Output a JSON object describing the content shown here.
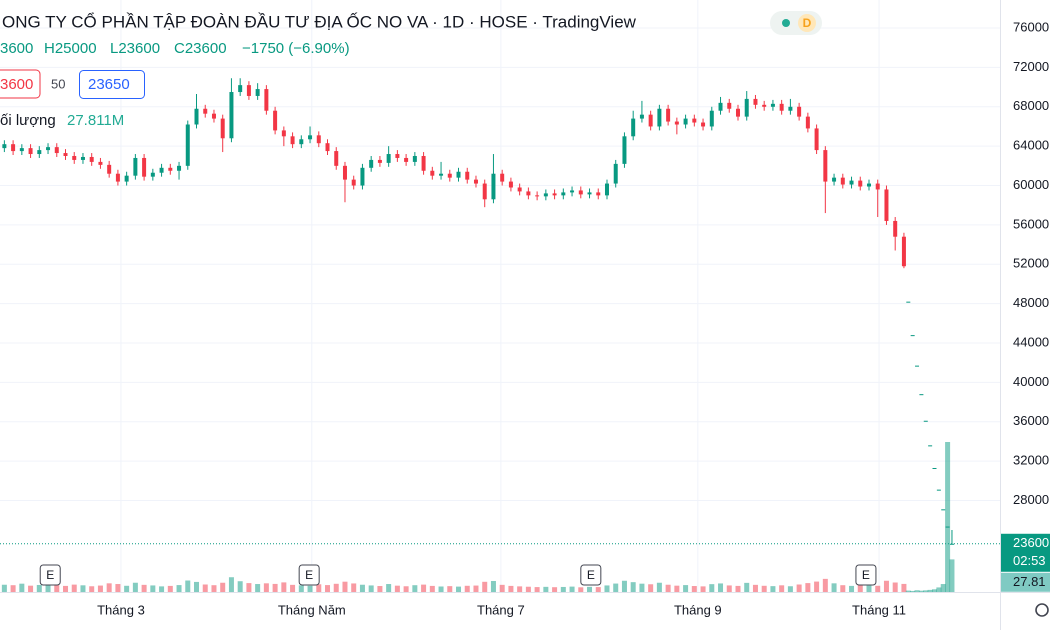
{
  "chart_data": {
    "type": "candlestick",
    "title": "ONG TY CỔ PHẦN TẬP ĐOÀN ĐẦU TƯ ĐỊA ỐC NO VA · 1D · HOSE · TradingView",
    "interval_badge": "D",
    "legend": {
      "open": "3600",
      "high": "H25000",
      "low": "L23600",
      "close": "C23600",
      "change": "−1750 (−6.90%)"
    },
    "indicator_row": {
      "left": "3600",
      "length": "50",
      "value": "23650"
    },
    "volume_legend": {
      "name": "ối lượng",
      "value": "27.811M"
    },
    "up_color": "#089981",
    "down_color": "#f23645",
    "grid": true,
    "x": [
      0,
      2,
      4,
      6,
      8,
      10,
      12,
      14,
      16,
      18,
      20,
      22,
      24,
      26,
      28,
      30,
      32,
      34,
      36,
      38,
      40,
      42,
      44,
      46,
      48,
      50,
      52,
      54,
      56,
      58,
      60,
      62,
      64,
      66,
      68,
      70,
      72,
      74,
      76,
      78,
      80,
      82,
      84,
      86,
      88,
      90,
      92,
      94,
      96,
      98,
      100,
      102,
      104,
      106,
      108,
      110,
      112,
      114,
      116,
      118,
      120,
      122,
      124,
      126,
      128,
      130,
      132,
      134,
      136,
      138,
      140,
      142,
      144,
      146,
      148,
      150,
      152,
      154,
      156,
      158,
      160,
      162,
      164,
      166,
      168,
      170,
      172,
      174,
      176,
      178,
      180,
      182,
      184,
      186,
      188,
      190,
      192,
      194,
      196,
      198,
      200,
      202,
      204,
      206,
      207,
      208,
      209,
      210,
      211,
      212,
      213,
      214,
      215,
      216,
      217
    ],
    "open": [
      63800,
      64200,
      63500,
      63800,
      63200,
      63600,
      63900,
      63300,
      63000,
      62600,
      62900,
      62400,
      62100,
      61200,
      60400,
      61000,
      62800,
      60900,
      61300,
      61800,
      61500,
      62000,
      66200,
      67800,
      67300,
      66800,
      64800,
      69500,
      70200,
      69100,
      69800,
      67600,
      65600,
      65000,
      64200,
      64700,
      65100,
      64300,
      63500,
      62000,
      60600,
      60000,
      61800,
      62600,
      62300,
      63200,
      62800,
      62400,
      63000,
      61500,
      61000,
      61200,
      60800,
      61400,
      60600,
      60200,
      58600,
      61200,
      60400,
      59800,
      59400,
      59000,
      58900,
      59200,
      59000,
      59300,
      59500,
      59100,
      59300,
      59000,
      60200,
      62200,
      65000,
      66800,
      67200,
      66000,
      67800,
      66500,
      66200,
      66800,
      66400,
      66000,
      67600,
      68400,
      67800,
      67000,
      68800,
      68200,
      68000,
      68300,
      67600,
      68000,
      67000,
      65800,
      63600,
      60400,
      60800,
      60100,
      60500,
      59900,
      60200,
      59600,
      56400,
      54800,
      48200,
      44800,
      41700,
      38800,
      36100,
      33600,
      31300,
      29100,
      27100,
      25350,
      23600
    ],
    "high": [
      64600,
      64600,
      64200,
      64200,
      64000,
      64300,
      64300,
      63700,
      63400,
      63300,
      63300,
      62800,
      62500,
      61600,
      61400,
      63200,
      63200,
      61700,
      62200,
      62200,
      62400,
      66600,
      69300,
      68200,
      67700,
      67200,
      70900,
      70900,
      70600,
      70400,
      70200,
      68000,
      66000,
      65400,
      65100,
      66000,
      65500,
      64700,
      63900,
      62400,
      61000,
      62200,
      63000,
      63000,
      64000,
      63600,
      63200,
      63400,
      63400,
      61900,
      62400,
      61600,
      61800,
      61800,
      61000,
      60600,
      63200,
      61600,
      60800,
      60200,
      59800,
      59400,
      59600,
      59600,
      59700,
      59900,
      59900,
      59700,
      59700,
      60600,
      62600,
      65400,
      67600,
      68600,
      67600,
      68200,
      68200,
      66900,
      67200,
      67200,
      66800,
      68000,
      69000,
      68800,
      68200,
      69600,
      69200,
      68600,
      68700,
      68700,
      68800,
      68400,
      67400,
      66200,
      64000,
      61200,
      61200,
      60900,
      60900,
      60600,
      60600,
      60000,
      56800,
      55200,
      48200,
      44800,
      41700,
      38800,
      36100,
      33600,
      31300,
      29100,
      27100,
      25350,
      25000
    ],
    "low": [
      63400,
      63100,
      63100,
      62800,
      62800,
      63200,
      62900,
      62600,
      62200,
      62200,
      62000,
      61700,
      60800,
      60000,
      60000,
      60600,
      60500,
      60500,
      60900,
      61100,
      60600,
      61600,
      65800,
      66900,
      66400,
      63400,
      64400,
      69100,
      68700,
      68700,
      67200,
      65200,
      64000,
      63800,
      63800,
      64300,
      63900,
      63100,
      61600,
      58300,
      59600,
      59600,
      61400,
      61900,
      61900,
      62400,
      62000,
      62000,
      61100,
      60600,
      60600,
      60400,
      60400,
      60200,
      59800,
      57800,
      58200,
      60000,
      59400,
      59000,
      58600,
      58500,
      58500,
      58600,
      58600,
      58900,
      58700,
      58700,
      58600,
      58600,
      59800,
      61800,
      64600,
      66400,
      65600,
      65600,
      66100,
      65200,
      65800,
      66000,
      65600,
      65600,
      67200,
      67400,
      66600,
      66600,
      67800,
      67600,
      67600,
      67200,
      67200,
      66600,
      65400,
      63200,
      57200,
      60000,
      59700,
      59700,
      59500,
      59500,
      56800,
      56000,
      53400,
      51600,
      48200,
      44800,
      41700,
      38800,
      36100,
      33600,
      31300,
      29100,
      27100,
      25350,
      23600
    ],
    "close": [
      64200,
      63500,
      63800,
      63200,
      63600,
      63900,
      63300,
      63000,
      62600,
      62900,
      62400,
      62100,
      61200,
      60400,
      61000,
      62800,
      60900,
      61300,
      61800,
      61500,
      62000,
      66200,
      67800,
      67300,
      66800,
      64800,
      69500,
      70200,
      69100,
      69800,
      67600,
      65600,
      65000,
      64200,
      64700,
      65100,
      64300,
      63500,
      62000,
      60600,
      60000,
      61800,
      62600,
      62300,
      63200,
      62800,
      62400,
      63000,
      61500,
      61000,
      61200,
      60800,
      61400,
      60600,
      60200,
      58600,
      61200,
      60400,
      59800,
      59400,
      59000,
      58900,
      59200,
      59000,
      59300,
      59500,
      59100,
      59300,
      59000,
      60200,
      62200,
      65000,
      66800,
      67200,
      66000,
      67800,
      66500,
      66200,
      66800,
      66400,
      66000,
      67600,
      68400,
      67800,
      67000,
      68800,
      68200,
      68000,
      68300,
      67600,
      68000,
      67000,
      65800,
      63600,
      60400,
      60800,
      60100,
      60500,
      59900,
      60200,
      59600,
      56400,
      54800,
      51800,
      48200,
      44800,
      41700,
      38800,
      36100,
      33600,
      31300,
      29100,
      27100,
      25350,
      23600
    ],
    "volume": [
      6200000,
      5800000,
      7100000,
      5400000,
      6000000,
      6600000,
      5900000,
      5200000,
      6300000,
      5700000,
      4900000,
      5500000,
      7400000,
      6800000,
      5300000,
      7900000,
      6100000,
      5600000,
      4800000,
      5200000,
      5900000,
      9800000,
      8600000,
      6400000,
      5800000,
      7900000,
      12600000,
      9200000,
      7600000,
      6800000,
      7400000,
      6900000,
      8200000,
      6100000,
      5700000,
      5300000,
      6600000,
      5900000,
      7000000,
      8800000,
      7300000,
      6200000,
      5600000,
      5100000,
      6800000,
      5400000,
      4900000,
      5800000,
      6300000,
      5200000,
      4700000,
      5000000,
      4600000,
      5300000,
      5500000,
      8700000,
      9400000,
      6100000,
      5200000,
      4800000,
      4500000,
      4200000,
      4400000,
      4100000,
      4300000,
      4600000,
      4000000,
      4400000,
      4200000,
      5600000,
      7200000,
      9600000,
      8400000,
      7100000,
      6600000,
      7900000,
      6200000,
      5400000,
      5900000,
      5100000,
      4800000,
      6700000,
      7300000,
      5600000,
      5200000,
      7800000,
      6100000,
      5300000,
      5000000,
      5700000,
      4900000,
      6400000,
      7600000,
      8900000,
      11200000,
      7400000,
      5800000,
      5200000,
      6000000,
      5500000,
      5300000,
      9600000,
      8100000,
      6900000,
      1200000,
      900000,
      1500000,
      1100000,
      1400000,
      1800000,
      2300000,
      3900000,
      6800000,
      128000000,
      27811000
    ],
    "xlim": [
      -1,
      228
    ],
    "xticks": [
      {
        "value": 26.7,
        "label": "Tháng 3"
      },
      {
        "value": 70.4,
        "label": "Tháng Năm"
      },
      {
        "value": 113.7,
        "label": "Tháng 7"
      },
      {
        "value": 158.8,
        "label": "Tháng 9"
      },
      {
        "value": 200.3,
        "label": "Tháng 11"
      }
    ],
    "ylim": [
      18700,
      78850
    ],
    "yticks": [
      28000,
      32000,
      36000,
      40000,
      44000,
      48000,
      52000,
      56000,
      60000,
      64000,
      68000,
      72000,
      76000
    ],
    "events": [
      {
        "x": 10.5,
        "label": "E"
      },
      {
        "x": 69.8,
        "label": "E"
      },
      {
        "x": 134.3,
        "label": "E"
      },
      {
        "x": 197.3,
        "label": "E"
      }
    ],
    "price_label": {
      "value": 23600,
      "countdown": "02:53"
    },
    "volume_label": "27.81"
  }
}
